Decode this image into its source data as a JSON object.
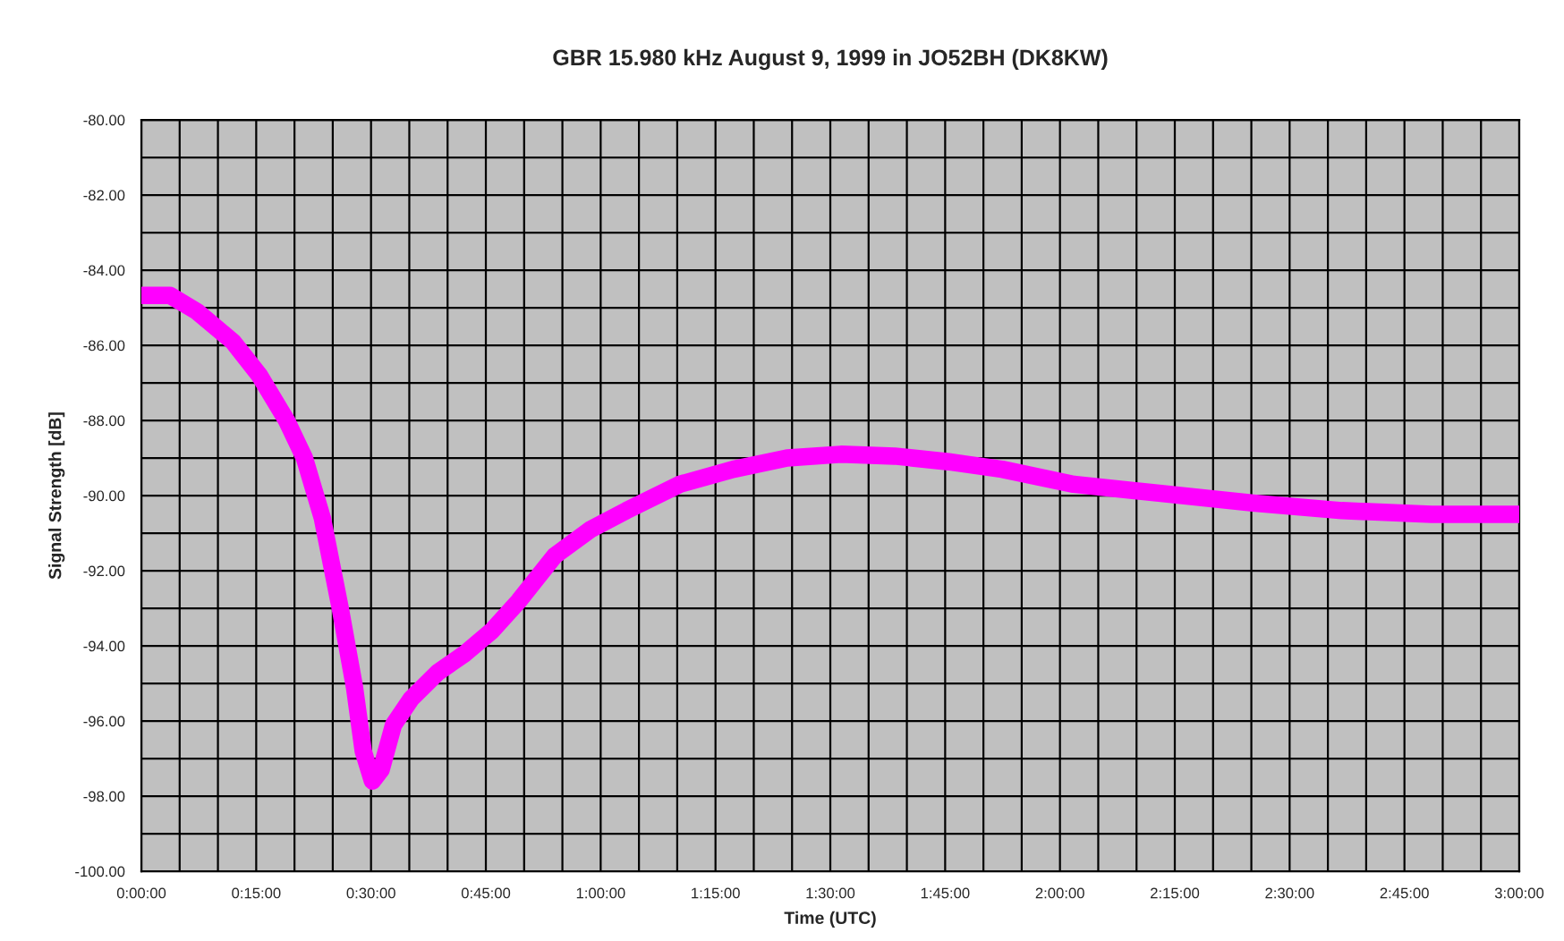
{
  "chart_data": {
    "type": "line",
    "title": "GBR 15.980 kHz August 9, 1999 in JO52BH (DK8KW)",
    "xlabel": "Time (UTC)",
    "ylabel": "Signal Strength [dB]",
    "x": [
      0,
      0.062,
      0.121,
      0.199,
      0.257,
      0.316,
      0.355,
      0.394,
      0.433,
      0.464,
      0.483,
      0.503,
      0.522,
      0.549,
      0.588,
      0.646,
      0.705,
      0.763,
      0.822,
      0.9,
      0.978,
      1.056,
      1.172,
      1.289,
      1.406,
      1.523,
      1.64,
      1.757,
      1.874,
      2.03,
      2.225,
      2.42,
      2.614,
      2.809,
      3.0
    ],
    "series": [
      {
        "color": "#ff00ff",
        "values": [
          -84.67,
          -84.67,
          -85.1,
          -85.9,
          -86.8,
          -88.0,
          -89.0,
          -90.6,
          -93.0,
          -95.1,
          -96.8,
          -97.6,
          -97.3,
          -96.1,
          -95.4,
          -94.7,
          -94.2,
          -93.6,
          -92.8,
          -91.6,
          -90.9,
          -90.4,
          -89.7,
          -89.3,
          -89.0,
          -88.9,
          -88.95,
          -89.1,
          -89.3,
          -89.7,
          -89.95,
          -90.2,
          -90.4,
          -90.5,
          -90.5
        ]
      }
    ],
    "xlim": [
      0,
      3
    ],
    "ylim": [
      -100,
      -80
    ],
    "xticks": [
      {
        "value": 0,
        "label": "0:00:00"
      },
      {
        "value": 0.25,
        "label": "0:15:00"
      },
      {
        "value": 0.5,
        "label": "0:30:00"
      },
      {
        "value": 0.75,
        "label": "0:45:00"
      },
      {
        "value": 1,
        "label": "1:00:00"
      },
      {
        "value": 1.25,
        "label": "1:15:00"
      },
      {
        "value": 1.5,
        "label": "1:30:00"
      },
      {
        "value": 1.75,
        "label": "1:45:00"
      },
      {
        "value": 2,
        "label": "2:00:00"
      },
      {
        "value": 2.25,
        "label": "2:15:00"
      },
      {
        "value": 2.5,
        "label": "2:30:00"
      },
      {
        "value": 2.75,
        "label": "2:45:00"
      },
      {
        "value": 3,
        "label": "3:00:00"
      }
    ],
    "yticks": [
      {
        "value": -80,
        "label": "-80.00"
      },
      {
        "value": -82,
        "label": "-82.00"
      },
      {
        "value": -84,
        "label": "-84.00"
      },
      {
        "value": -86,
        "label": "-86.00"
      },
      {
        "value": -88,
        "label": "-88.00"
      },
      {
        "value": -90,
        "label": "-90.00"
      },
      {
        "value": -92,
        "label": "-92.00"
      },
      {
        "value": -94,
        "label": "-94.00"
      },
      {
        "value": -96,
        "label": "-96.00"
      },
      {
        "value": -98,
        "label": "-98.00"
      },
      {
        "value": -100,
        "label": "-100.00"
      }
    ],
    "grid": true,
    "marker": "none",
    "line_style": "solid"
  }
}
